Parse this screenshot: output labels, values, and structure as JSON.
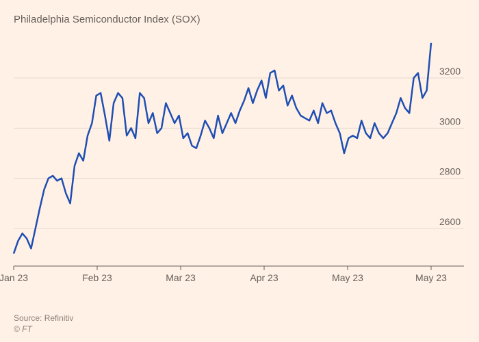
{
  "chart": {
    "type": "line",
    "title": "Philadelphia Semiconductor Index (SOX)",
    "line_color": "#1f4fb3",
    "line_width": 2.5,
    "background_color": "#fff1e5",
    "grid_color": "#e4d9ce",
    "axis_color": "#66605c",
    "text_color": "#66605c",
    "title_fontsize": 15,
    "label_fontsize": 14,
    "ylim": [
      2450,
      3350
    ],
    "yticks": [
      2600,
      2800,
      3000,
      3200
    ],
    "xticks": [
      "Jan 23",
      "Feb 23",
      "Mar 23",
      "Apr 23",
      "May 23",
      "May 23"
    ],
    "data": [
      2500,
      2550,
      2580,
      2560,
      2520,
      2600,
      2680,
      2755,
      2800,
      2810,
      2790,
      2800,
      2740,
      2700,
      2850,
      2900,
      2870,
      2970,
      3020,
      3130,
      3140,
      3050,
      2950,
      3100,
      3140,
      3120,
      2970,
      3000,
      2960,
      3140,
      3120,
      3020,
      3060,
      2980,
      3000,
      3100,
      3060,
      3020,
      3050,
      2960,
      2980,
      2930,
      2920,
      2970,
      3030,
      3000,
      2960,
      3050,
      2980,
      3020,
      3060,
      3020,
      3070,
      3110,
      3160,
      3100,
      3150,
      3190,
      3120,
      3220,
      3230,
      3150,
      3170,
      3090,
      3130,
      3080,
      3050,
      3040,
      3030,
      3070,
      3020,
      3100,
      3060,
      3070,
      3020,
      2980,
      2900,
      2960,
      2970,
      2960,
      3030,
      2980,
      2960,
      3020,
      2980,
      2960,
      2980,
      3020,
      3060,
      3120,
      3080,
      3060,
      3200,
      3220,
      3120,
      3150,
      3340
    ]
  },
  "footer": {
    "source": "Source: Refinitiv",
    "copyright": "© FT"
  }
}
